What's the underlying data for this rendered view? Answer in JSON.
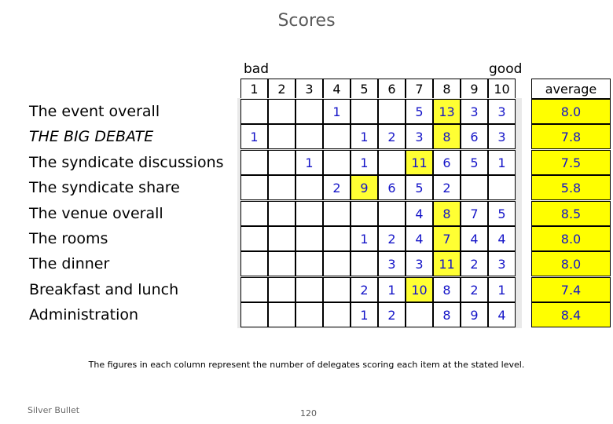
{
  "title": "Scores",
  "scale": {
    "low_label": "bad",
    "high_label": "good"
  },
  "columns": [
    "1",
    "2",
    "3",
    "4",
    "5",
    "6",
    "7",
    "8",
    "9",
    "10"
  ],
  "average_header": "average",
  "rows": [
    {
      "label": "The event overall",
      "italic": false,
      "cells": [
        "",
        "",
        "",
        "1",
        "",
        "",
        "5",
        "13",
        "3",
        "3"
      ],
      "highlight": [
        7
      ],
      "average": "8.0"
    },
    {
      "label": "THE  BIG DEBATE",
      "italic": true,
      "cells": [
        "1",
        "",
        "",
        "",
        "1",
        "2",
        "3",
        "8",
        "6",
        "3"
      ],
      "highlight": [
        7
      ],
      "average": "7.8"
    },
    {
      "label": "The syndicate discussions",
      "italic": false,
      "cells": [
        "",
        "",
        "1",
        "",
        "1",
        "",
        "11",
        "6",
        "5",
        "1"
      ],
      "highlight": [
        6
      ],
      "average": "7.5"
    },
    {
      "label": "The syndicate share",
      "italic": false,
      "cells": [
        "",
        "",
        "",
        "2",
        "9",
        "6",
        "5",
        "2",
        "",
        ""
      ],
      "highlight": [
        4
      ],
      "average": "5.8"
    },
    {
      "label": "The venue overall",
      "italic": false,
      "cells": [
        "",
        "",
        "",
        "",
        "",
        "",
        "4",
        "8",
        "7",
        "5"
      ],
      "highlight": [
        7
      ],
      "average": "8.5"
    },
    {
      "label": "The rooms",
      "italic": false,
      "cells": [
        "",
        "",
        "",
        "",
        "1",
        "2",
        "4",
        "7",
        "4",
        "4"
      ],
      "highlight": [
        7
      ],
      "average": "8.0"
    },
    {
      "label": "The dinner",
      "italic": false,
      "cells": [
        "",
        "",
        "",
        "",
        "",
        "3",
        "3",
        "11",
        "2",
        "3"
      ],
      "highlight": [
        7
      ],
      "average": "8.0"
    },
    {
      "label": "Breakfast and lunch",
      "italic": false,
      "cells": [
        "",
        "",
        "",
        "",
        "2",
        "1",
        "10",
        "8",
        "2",
        "1"
      ],
      "highlight": [
        6
      ],
      "average": "7.4"
    },
    {
      "label": "Administration",
      "italic": false,
      "cells": [
        "",
        "",
        "",
        "",
        "1",
        "2",
        "",
        "8",
        "9",
        "4"
      ],
      "highlight": [],
      "average": "8.4"
    }
  ],
  "footnote": "The figures in each column represent the number of delegates scoring each item at the stated level.",
  "brand": "Silver Bullet",
  "page_number": "120",
  "colors": {
    "highlight": "#ffff33",
    "average_bg": "#ffff00",
    "value_text": "#1515c8",
    "panel_bg": "#e9e9e9"
  }
}
